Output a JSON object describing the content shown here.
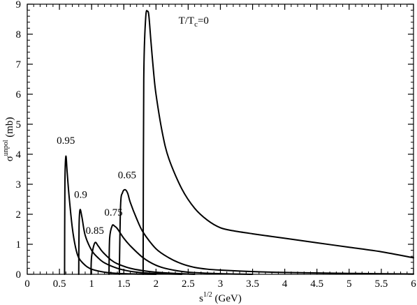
{
  "chart_data": {
    "type": "line",
    "title": "",
    "xlabel": {
      "base": "s",
      "sup": "1/2",
      "unit": " (GeV)"
    },
    "ylabel": {
      "base": "σ",
      "sup": "unpol",
      "unit": " (mb)"
    },
    "xlim": [
      0,
      6
    ],
    "ylim": [
      0,
      9
    ],
    "x_ticks": [
      "0",
      "0.5",
      "1",
      "1.5",
      "2",
      "2.5",
      "3",
      "3.5",
      "4",
      "4.5",
      "5",
      "5.5",
      "6"
    ],
    "y_ticks": [
      "0",
      "1",
      "2",
      "3",
      "4",
      "5",
      "6",
      "7",
      "8",
      "9"
    ],
    "x_minor_step": 0.1,
    "y_minor_step": 0.2,
    "grid": false,
    "legend": "none",
    "line_color": "#000000",
    "series": [
      {
        "name": "0.95",
        "x": [
          0.58,
          0.585,
          0.6,
          0.62,
          0.65,
          0.7,
          0.75,
          0.8,
          0.9,
          1.0,
          1.2,
          1.4,
          1.6,
          1.8,
          2.0
        ],
        "y": [
          0.0,
          3.0,
          3.93,
          3.4,
          2.6,
          1.55,
          0.9,
          0.55,
          0.3,
          0.17,
          0.07,
          0.03,
          0.015,
          0.005,
          0.0
        ]
      },
      {
        "name": "0.9",
        "x": [
          0.8,
          0.805,
          0.82,
          0.85,
          0.9,
          1.0,
          1.1,
          1.2,
          1.4,
          1.6,
          1.8,
          2.0,
          2.4
        ],
        "y": [
          0.0,
          1.6,
          2.15,
          1.9,
          1.3,
          0.8,
          0.55,
          0.38,
          0.2,
          0.1,
          0.05,
          0.025,
          0.0
        ]
      },
      {
        "name": "0.85",
        "x": [
          0.99,
          1.0,
          1.05,
          1.1,
          1.15,
          1.2,
          1.3,
          1.4,
          1.6,
          1.8,
          2.0,
          2.3,
          2.6
        ],
        "y": [
          0.0,
          0.6,
          1.05,
          0.95,
          0.8,
          0.68,
          0.48,
          0.35,
          0.2,
          0.12,
          0.07,
          0.03,
          0.0
        ]
      },
      {
        "name": "0.75",
        "x": [
          1.27,
          1.28,
          1.32,
          1.36,
          1.4,
          1.5,
          1.6,
          1.8,
          2.0,
          2.2,
          2.5,
          3.0,
          3.5
        ],
        "y": [
          0.0,
          1.2,
          1.62,
          1.6,
          1.52,
          1.2,
          0.95,
          0.55,
          0.3,
          0.17,
          0.07,
          0.02,
          0.0
        ]
      },
      {
        "name": "0.65",
        "x": [
          1.43,
          1.45,
          1.48,
          1.52,
          1.56,
          1.6,
          1.7,
          1.8,
          2.0,
          2.2,
          2.4,
          2.6,
          2.8,
          3.0,
          3.5,
          4.0,
          5.0,
          6.0
        ],
        "y": [
          0.0,
          2.3,
          2.72,
          2.82,
          2.7,
          2.4,
          1.85,
          1.4,
          0.85,
          0.55,
          0.35,
          0.23,
          0.17,
          0.14,
          0.09,
          0.06,
          0.03,
          0.01
        ]
      },
      {
        "name": "T/T_c=0",
        "x": [
          1.8,
          1.81,
          1.84,
          1.87,
          1.89,
          1.92,
          1.96,
          2.0,
          2.1,
          2.2,
          2.4,
          2.6,
          2.8,
          3.0,
          3.2,
          3.5,
          4.0,
          4.5,
          5.0,
          5.5,
          6.0
        ],
        "y": [
          0.0,
          6.5,
          8.55,
          8.76,
          8.6,
          7.8,
          6.8,
          6.0,
          4.7,
          3.85,
          2.85,
          2.2,
          1.8,
          1.55,
          1.45,
          1.35,
          1.2,
          1.05,
          0.9,
          0.75,
          0.55
        ]
      }
    ],
    "annotations": [
      {
        "text": "0.95",
        "x": 0.6,
        "y": 4.35
      },
      {
        "text": "0.9",
        "x": 0.83,
        "y": 2.55
      },
      {
        "text": "0.85",
        "x": 1.05,
        "y": 1.35
      },
      {
        "text": "0.75",
        "x": 1.34,
        "y": 1.95
      },
      {
        "text": "0.65",
        "x": 1.55,
        "y": 3.2
      }
    ],
    "main_label": {
      "base": "T/T",
      "sub": "c",
      "rest": "=0",
      "x": 2.35,
      "y": 8.35
    }
  }
}
